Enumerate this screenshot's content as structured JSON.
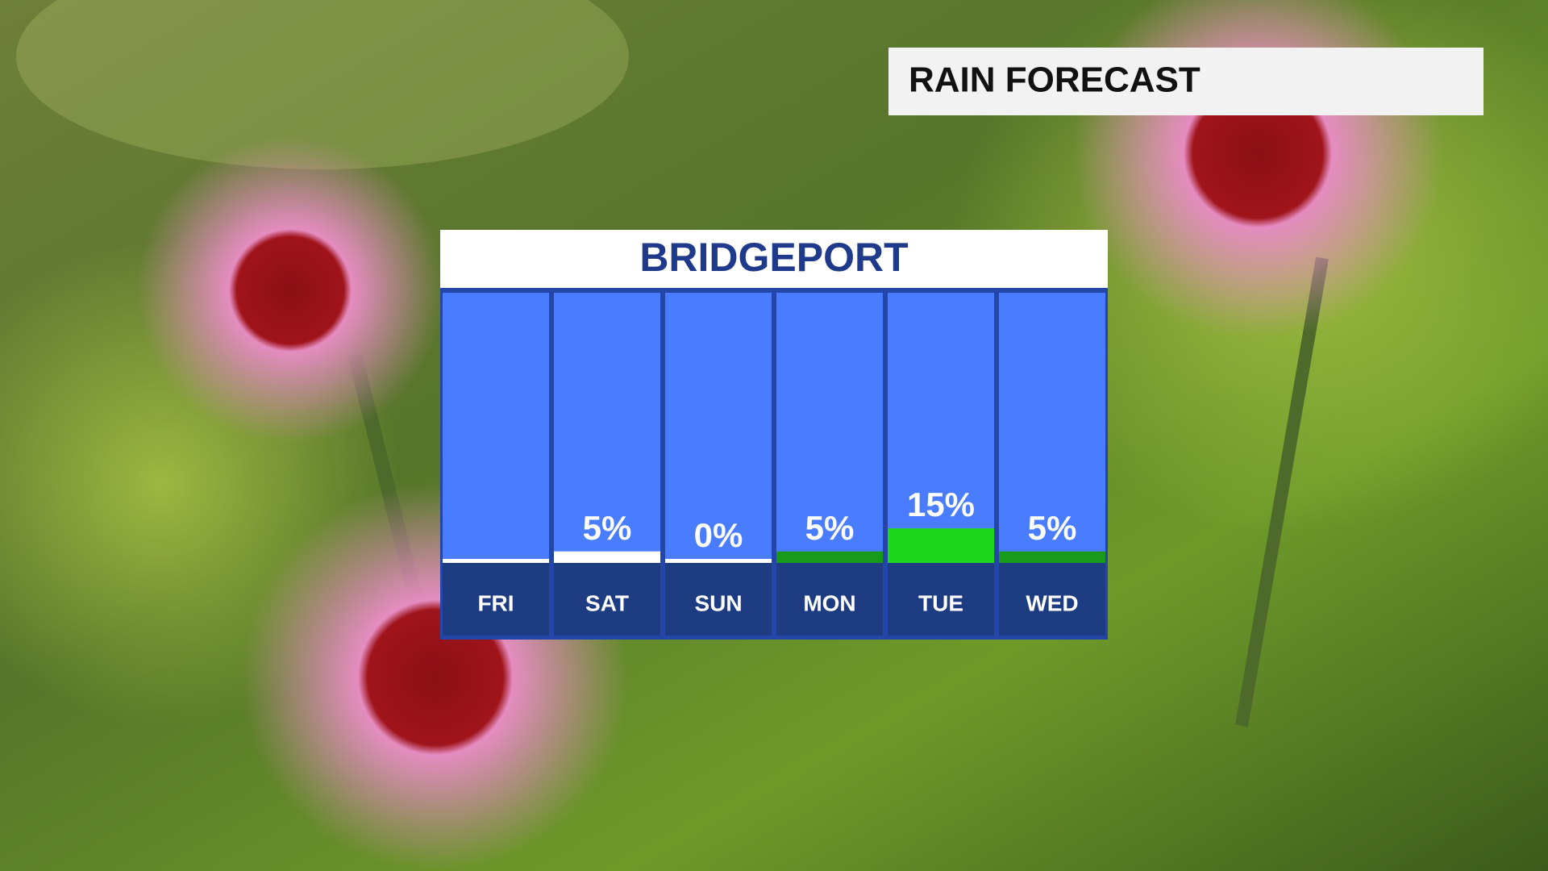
{
  "header": {
    "title": "RAIN FORECAST"
  },
  "chart_data": {
    "type": "bar",
    "title": "BRIDGEPORT",
    "categories": [
      "FRI",
      "SAT",
      "SUN",
      "MON",
      "TUE",
      "WED"
    ],
    "values": [
      0,
      5,
      0,
      5,
      15,
      5
    ],
    "value_labels": [
      null,
      "5%",
      "0%",
      "5%",
      "15%",
      "5%"
    ],
    "colors": [
      "#ffffff",
      "#ffffff",
      "#ffffff",
      "#1a9a1a",
      "#1fd61f",
      "#1a9a1a"
    ],
    "ylim": [
      0,
      100
    ]
  }
}
